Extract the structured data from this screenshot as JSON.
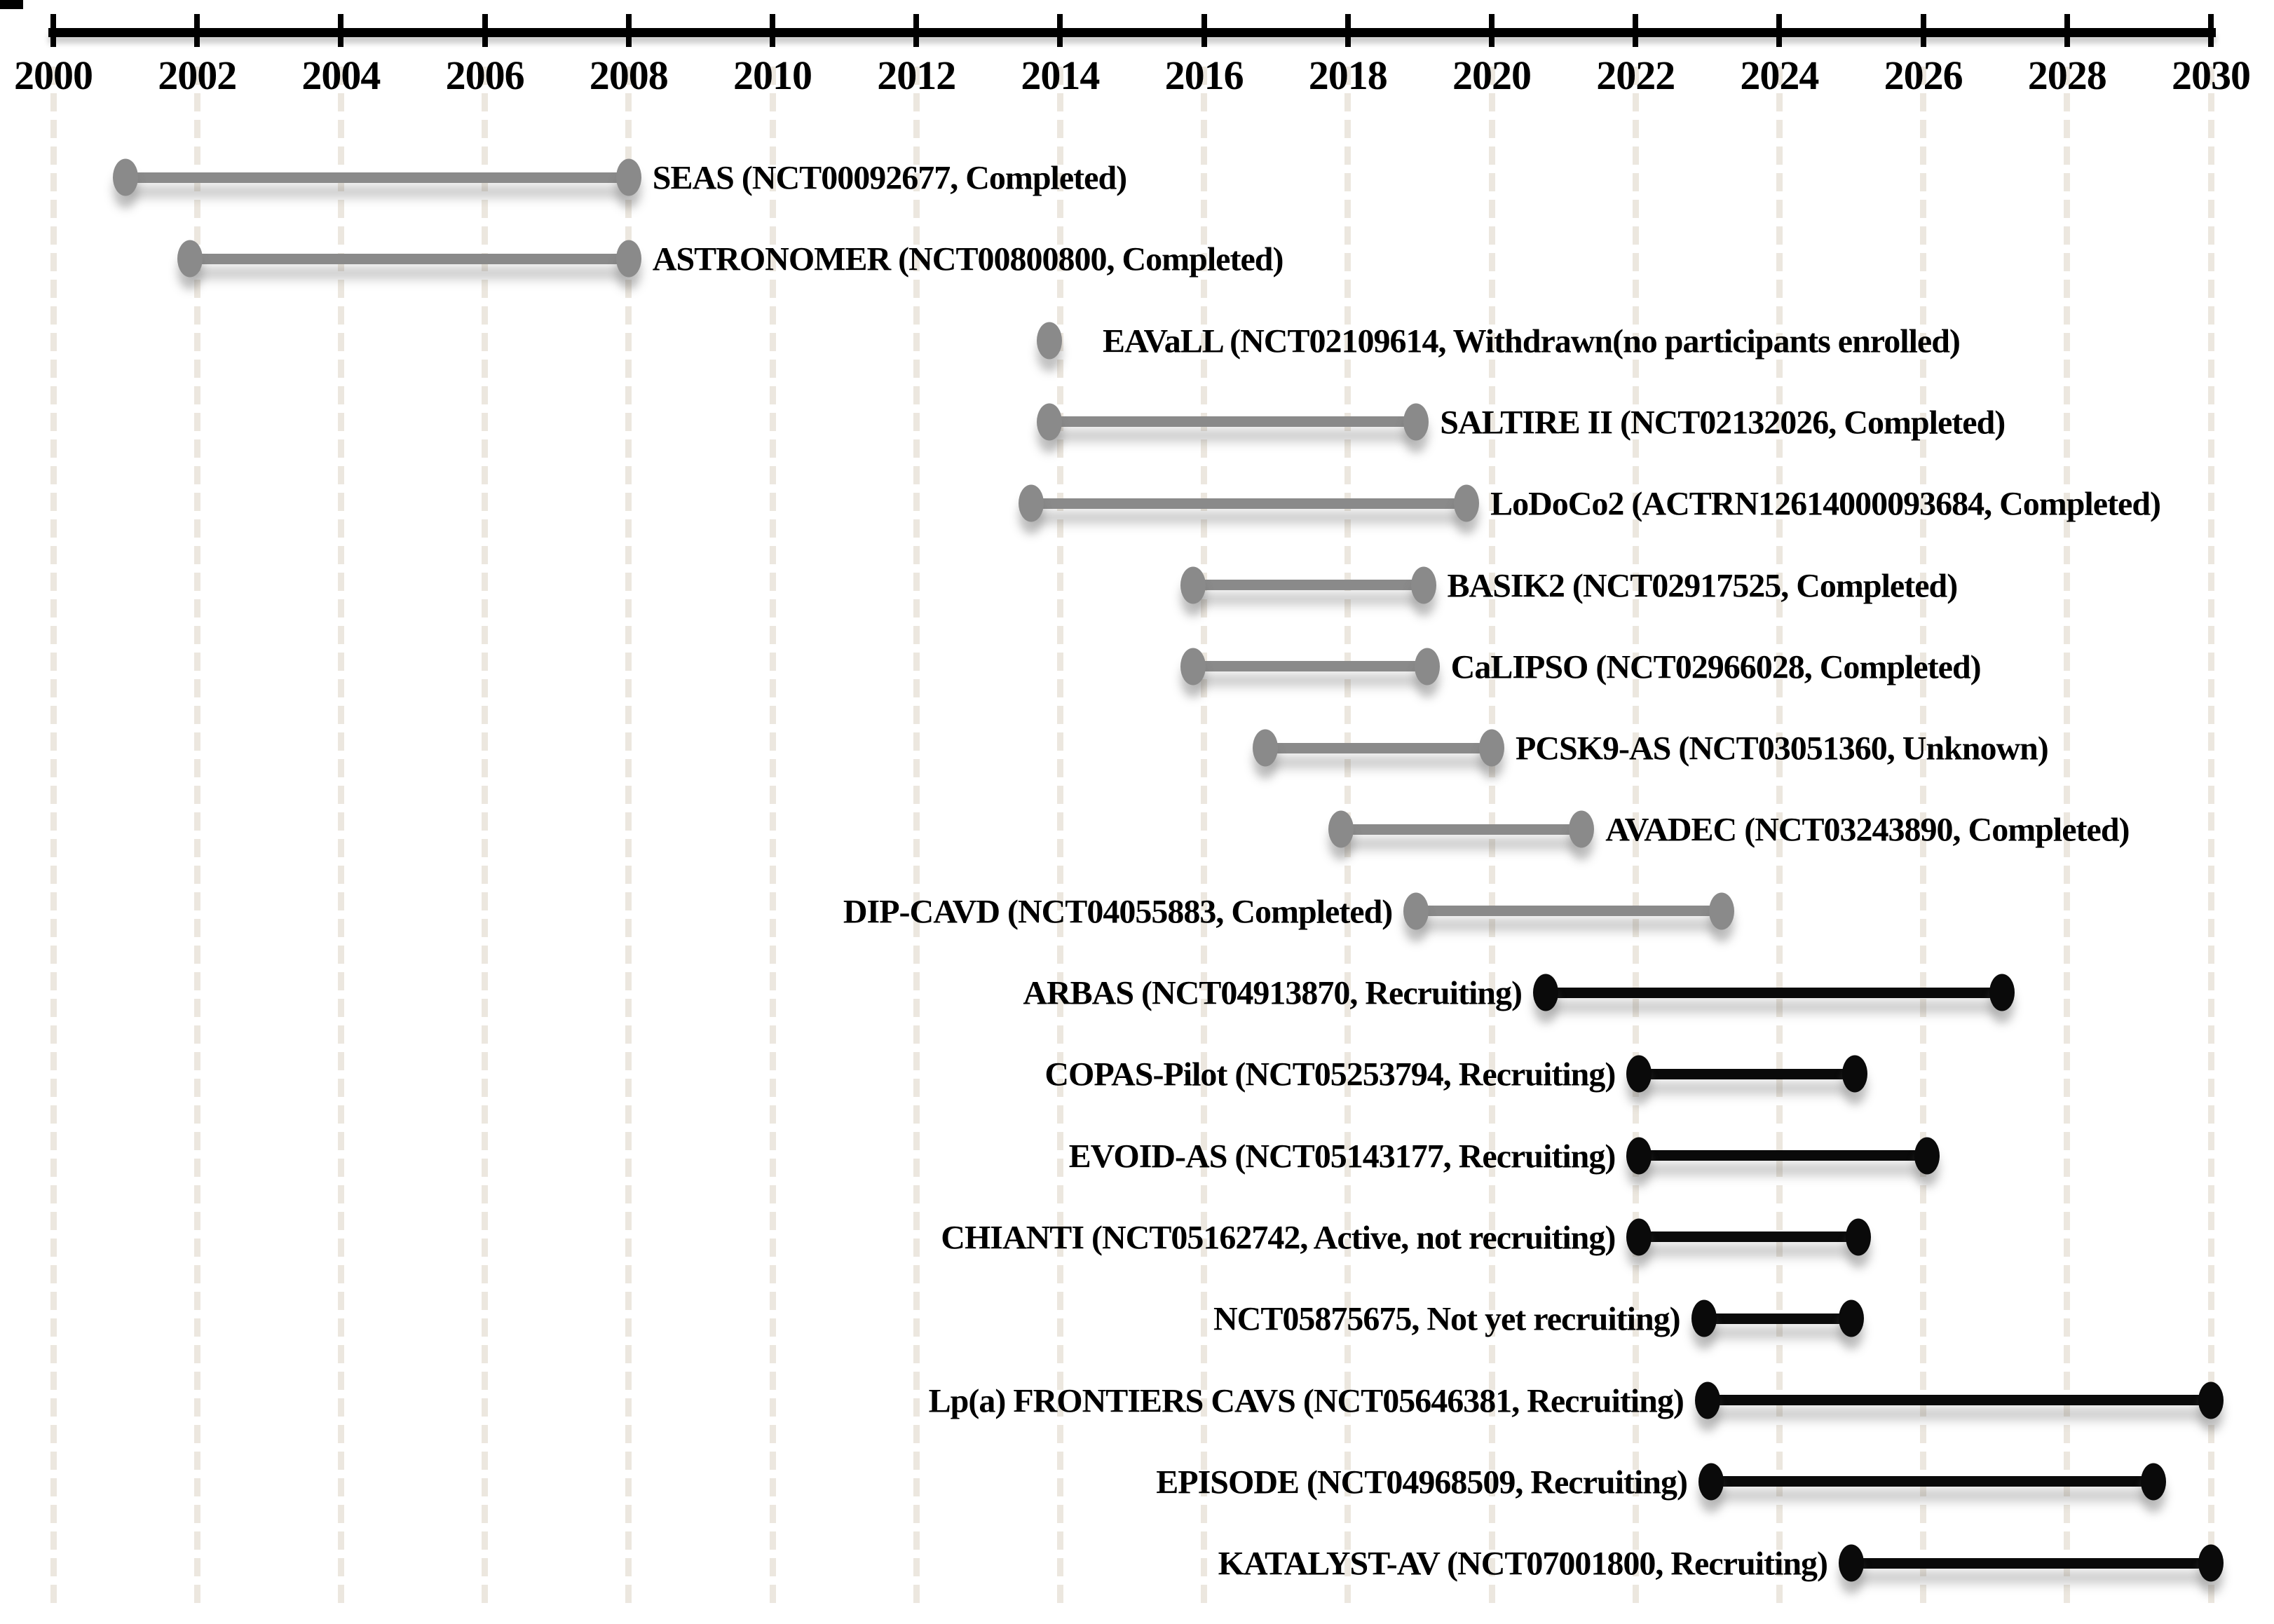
{
  "chart_data": {
    "type": "bar",
    "subtype": "gantt-timeline-dumbbell",
    "title": "",
    "xlabel": "",
    "ylabel": "",
    "grid": "vertical-dashed-every-2-years",
    "legend": "none",
    "axis": {
      "min": 2000,
      "max": 2030,
      "tick_step": 2,
      "position": "top",
      "tick_labels": [
        "2000",
        "2002",
        "2004",
        "2006",
        "2008",
        "2010",
        "2012",
        "2014",
        "2016",
        "2018",
        "2020",
        "2022",
        "2024",
        "2026",
        "2028",
        "2030"
      ]
    },
    "colors": {
      "gray": "#8a8a8a",
      "black": "#0a0a0a",
      "gridline": "#ece7df",
      "background": "#ffffff",
      "text": "#000000"
    },
    "trials": [
      {
        "label": "SEAS (NCT00092677, Completed)",
        "start": 2001.0,
        "end": 2008.0,
        "color": "gray",
        "label_side": "right"
      },
      {
        "label": "ASTRONOMER (NCT00800800, Completed)",
        "start": 2001.9,
        "end": 2008.0,
        "color": "gray",
        "label_side": "right"
      },
      {
        "label": "EAVaLL (NCT02109614, Withdrawn(no participants enrolled)",
        "start": 2013.85,
        "end": 2013.85,
        "color": "gray",
        "label_side": "right"
      },
      {
        "label": "SALTIRE II (NCT02132026, Completed)",
        "start": 2013.85,
        "end": 2018.95,
        "color": "gray",
        "label_side": "right"
      },
      {
        "label": "LoDoCo2  (ACTRN12614000093684, Completed)",
        "start": 2013.6,
        "end": 2019.65,
        "color": "gray",
        "label_side": "right"
      },
      {
        "label": "BASIK2 (NCT02917525, Completed)",
        "start": 2015.85,
        "end": 2019.05,
        "color": "gray",
        "label_side": "right"
      },
      {
        "label": "CaLIPSO (NCT02966028, Completed)",
        "start": 2015.85,
        "end": 2019.1,
        "color": "gray",
        "label_side": "right"
      },
      {
        "label": "PCSK9-AS (NCT03051360, Unknown)",
        "start": 2016.85,
        "end": 2020.0,
        "color": "gray",
        "label_side": "right"
      },
      {
        "label": "AVADEC (NCT03243890, Completed)",
        "start": 2017.9,
        "end": 2021.25,
        "color": "gray",
        "label_side": "right"
      },
      {
        "label": "DIP-CAVD (NCT04055883, Completed)",
        "start": 2018.95,
        "end": 2023.2,
        "color": "gray",
        "label_side": "left"
      },
      {
        "label": "ARBAS  (NCT04913870, Recruiting)",
        "start": 2020.75,
        "end": 2027.1,
        "color": "black",
        "label_side": "left"
      },
      {
        "label": "COPAS-Pilot (NCT05253794, Recruiting)",
        "start": 2022.05,
        "end": 2025.05,
        "color": "black",
        "label_side": "left"
      },
      {
        "label": "EVOID-AS (NCT05143177, Recruiting)",
        "start": 2022.05,
        "end": 2026.05,
        "color": "black",
        "label_side": "left"
      },
      {
        "label": "CHIANTI (NCT05162742, Active, not recruiting)",
        "start": 2022.05,
        "end": 2025.1,
        "color": "black",
        "label_side": "left"
      },
      {
        "label": "NCT05875675, Not yet recruiting)",
        "start": 2022.95,
        "end": 2025.0,
        "color": "black",
        "label_side": "left"
      },
      {
        "label": "Lp(a) FRONTIERS CAVS  (NCT05646381, Recruiting)",
        "start": 2023.0,
        "end": 2030.0,
        "color": "black",
        "label_side": "left"
      },
      {
        "label": "EPISODE (NCT04968509, Recruiting)",
        "start": 2023.05,
        "end": 2029.2,
        "color": "black",
        "label_side": "left"
      },
      {
        "label": "KATALYST-AV  (NCT07001800, Recruiting)",
        "start": 2025.0,
        "end": 2030.0,
        "color": "black",
        "label_side": "left"
      }
    ]
  }
}
